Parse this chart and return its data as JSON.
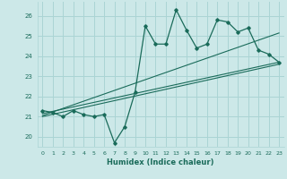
{
  "xlabel": "Humidex (Indice chaleur)",
  "ylabel": "",
  "background_color": "#cce8e8",
  "grid_color": "#aad4d4",
  "line_color": "#1a6b5a",
  "xlim": [
    -0.5,
    23.5
  ],
  "ylim": [
    19.5,
    26.7
  ],
  "xticks": [
    0,
    1,
    2,
    3,
    4,
    5,
    6,
    7,
    8,
    9,
    10,
    11,
    12,
    13,
    14,
    15,
    16,
    17,
    18,
    19,
    20,
    21,
    22,
    23
  ],
  "yticks": [
    20,
    21,
    22,
    23,
    24,
    25,
    26
  ],
  "data_x": [
    0,
    1,
    2,
    3,
    4,
    5,
    6,
    7,
    8,
    9,
    10,
    11,
    12,
    13,
    14,
    15,
    16,
    17,
    18,
    19,
    20,
    21,
    22,
    23
  ],
  "data_y": [
    21.3,
    21.2,
    21.0,
    21.3,
    21.1,
    21.0,
    21.1,
    19.7,
    20.5,
    22.2,
    25.5,
    24.6,
    24.6,
    26.3,
    25.3,
    24.4,
    24.6,
    25.8,
    25.7,
    25.2,
    25.4,
    24.3,
    24.1,
    23.7
  ],
  "reg_line_lower": [
    21.0,
    23.6
  ],
  "reg_line_upper": [
    21.05,
    25.15
  ],
  "reg_line_mid": [
    21.15,
    23.7
  ]
}
